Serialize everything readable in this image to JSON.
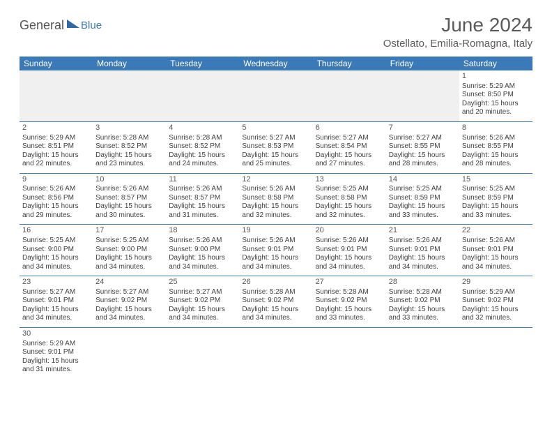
{
  "logo": {
    "main": "General",
    "sub": "Blue"
  },
  "title": "June 2024",
  "location": "Ostellato, Emilia-Romagna, Italy",
  "colors": {
    "header_bg": "#3a7ab8",
    "header_text": "#ffffff",
    "cell_border": "#3a7ab8",
    "body_text": "#404040",
    "blank_bg": "#f0f0f0",
    "page_bg": "#ffffff"
  },
  "typography": {
    "title_fontsize": 28,
    "location_fontsize": 15,
    "dayheader_fontsize": 12,
    "cell_fontsize": 10,
    "daynum_fontsize": 11
  },
  "days_of_week": [
    "Sunday",
    "Monday",
    "Tuesday",
    "Wednesday",
    "Thursday",
    "Friday",
    "Saturday"
  ],
  "weeks": [
    [
      null,
      null,
      null,
      null,
      null,
      null,
      {
        "n": "1",
        "sunrise": "Sunrise: 5:29 AM",
        "sunset": "Sunset: 8:50 PM",
        "daylight": "Daylight: 15 hours and 20 minutes."
      }
    ],
    [
      {
        "n": "2",
        "sunrise": "Sunrise: 5:29 AM",
        "sunset": "Sunset: 8:51 PM",
        "daylight": "Daylight: 15 hours and 22 minutes."
      },
      {
        "n": "3",
        "sunrise": "Sunrise: 5:28 AM",
        "sunset": "Sunset: 8:52 PM",
        "daylight": "Daylight: 15 hours and 23 minutes."
      },
      {
        "n": "4",
        "sunrise": "Sunrise: 5:28 AM",
        "sunset": "Sunset: 8:52 PM",
        "daylight": "Daylight: 15 hours and 24 minutes."
      },
      {
        "n": "5",
        "sunrise": "Sunrise: 5:27 AM",
        "sunset": "Sunset: 8:53 PM",
        "daylight": "Daylight: 15 hours and 25 minutes."
      },
      {
        "n": "6",
        "sunrise": "Sunrise: 5:27 AM",
        "sunset": "Sunset: 8:54 PM",
        "daylight": "Daylight: 15 hours and 27 minutes."
      },
      {
        "n": "7",
        "sunrise": "Sunrise: 5:27 AM",
        "sunset": "Sunset: 8:55 PM",
        "daylight": "Daylight: 15 hours and 28 minutes."
      },
      {
        "n": "8",
        "sunrise": "Sunrise: 5:26 AM",
        "sunset": "Sunset: 8:55 PM",
        "daylight": "Daylight: 15 hours and 28 minutes."
      }
    ],
    [
      {
        "n": "9",
        "sunrise": "Sunrise: 5:26 AM",
        "sunset": "Sunset: 8:56 PM",
        "daylight": "Daylight: 15 hours and 29 minutes."
      },
      {
        "n": "10",
        "sunrise": "Sunrise: 5:26 AM",
        "sunset": "Sunset: 8:57 PM",
        "daylight": "Daylight: 15 hours and 30 minutes."
      },
      {
        "n": "11",
        "sunrise": "Sunrise: 5:26 AM",
        "sunset": "Sunset: 8:57 PM",
        "daylight": "Daylight: 15 hours and 31 minutes."
      },
      {
        "n": "12",
        "sunrise": "Sunrise: 5:26 AM",
        "sunset": "Sunset: 8:58 PM",
        "daylight": "Daylight: 15 hours and 32 minutes."
      },
      {
        "n": "13",
        "sunrise": "Sunrise: 5:25 AM",
        "sunset": "Sunset: 8:58 PM",
        "daylight": "Daylight: 15 hours and 32 minutes."
      },
      {
        "n": "14",
        "sunrise": "Sunrise: 5:25 AM",
        "sunset": "Sunset: 8:59 PM",
        "daylight": "Daylight: 15 hours and 33 minutes."
      },
      {
        "n": "15",
        "sunrise": "Sunrise: 5:25 AM",
        "sunset": "Sunset: 8:59 PM",
        "daylight": "Daylight: 15 hours and 33 minutes."
      }
    ],
    [
      {
        "n": "16",
        "sunrise": "Sunrise: 5:25 AM",
        "sunset": "Sunset: 9:00 PM",
        "daylight": "Daylight: 15 hours and 34 minutes."
      },
      {
        "n": "17",
        "sunrise": "Sunrise: 5:25 AM",
        "sunset": "Sunset: 9:00 PM",
        "daylight": "Daylight: 15 hours and 34 minutes."
      },
      {
        "n": "18",
        "sunrise": "Sunrise: 5:26 AM",
        "sunset": "Sunset: 9:00 PM",
        "daylight": "Daylight: 15 hours and 34 minutes."
      },
      {
        "n": "19",
        "sunrise": "Sunrise: 5:26 AM",
        "sunset": "Sunset: 9:01 PM",
        "daylight": "Daylight: 15 hours and 34 minutes."
      },
      {
        "n": "20",
        "sunrise": "Sunrise: 5:26 AM",
        "sunset": "Sunset: 9:01 PM",
        "daylight": "Daylight: 15 hours and 34 minutes."
      },
      {
        "n": "21",
        "sunrise": "Sunrise: 5:26 AM",
        "sunset": "Sunset: 9:01 PM",
        "daylight": "Daylight: 15 hours and 34 minutes."
      },
      {
        "n": "22",
        "sunrise": "Sunrise: 5:26 AM",
        "sunset": "Sunset: 9:01 PM",
        "daylight": "Daylight: 15 hours and 34 minutes."
      }
    ],
    [
      {
        "n": "23",
        "sunrise": "Sunrise: 5:27 AM",
        "sunset": "Sunset: 9:01 PM",
        "daylight": "Daylight: 15 hours and 34 minutes."
      },
      {
        "n": "24",
        "sunrise": "Sunrise: 5:27 AM",
        "sunset": "Sunset: 9:02 PM",
        "daylight": "Daylight: 15 hours and 34 minutes."
      },
      {
        "n": "25",
        "sunrise": "Sunrise: 5:27 AM",
        "sunset": "Sunset: 9:02 PM",
        "daylight": "Daylight: 15 hours and 34 minutes."
      },
      {
        "n": "26",
        "sunrise": "Sunrise: 5:28 AM",
        "sunset": "Sunset: 9:02 PM",
        "daylight": "Daylight: 15 hours and 34 minutes."
      },
      {
        "n": "27",
        "sunrise": "Sunrise: 5:28 AM",
        "sunset": "Sunset: 9:02 PM",
        "daylight": "Daylight: 15 hours and 33 minutes."
      },
      {
        "n": "28",
        "sunrise": "Sunrise: 5:28 AM",
        "sunset": "Sunset: 9:02 PM",
        "daylight": "Daylight: 15 hours and 33 minutes."
      },
      {
        "n": "29",
        "sunrise": "Sunrise: 5:29 AM",
        "sunset": "Sunset: 9:02 PM",
        "daylight": "Daylight: 15 hours and 32 minutes."
      }
    ],
    [
      {
        "n": "30",
        "sunrise": "Sunrise: 5:29 AM",
        "sunset": "Sunset: 9:01 PM",
        "daylight": "Daylight: 15 hours and 31 minutes."
      },
      null,
      null,
      null,
      null,
      null,
      null
    ]
  ]
}
